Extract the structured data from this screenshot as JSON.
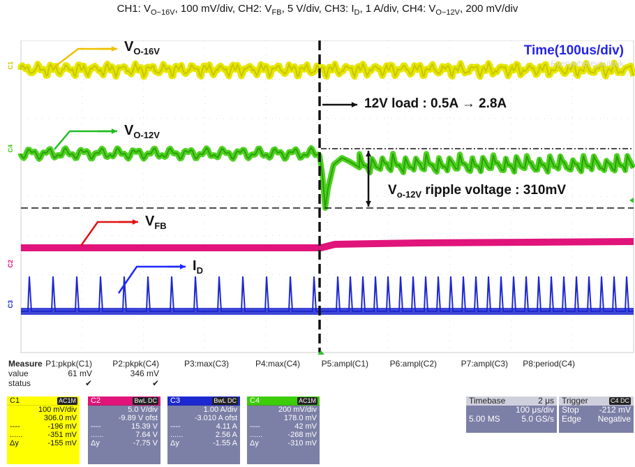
{
  "caption": {
    "ch1_label": "CH1: V",
    "ch1_sub": "O−16V",
    "ch1_scale": ", 100 mV/div, ",
    "ch2_label": "CH2: V",
    "ch2_sub": "FB",
    "ch2_scale": ", 5 V/div, ",
    "ch3_label": "CH3: I",
    "ch3_sub": "D",
    "ch3_scale": ", 1 A/div, ",
    "ch4_label": "CH4: V",
    "ch4_sub": "O−12V",
    "ch4_scale": ", 200 mV/div"
  },
  "annotations": {
    "vo16_main": "V",
    "vo16_sub": "O-16V",
    "vo12_main": "V",
    "vo12_sub": "O-12V",
    "vfb_main": "V",
    "vfb_sub": "FB",
    "id_main": "I",
    "id_sub": "D",
    "time_div": "Time(100us/div)",
    "load_step": "12V load : 0.5A → 2.8A",
    "ripple_main": "V",
    "ripple_sub": "o-12V",
    "ripple_text": " ripple voltage : 310mV",
    "watermark": "Everywhereyoulook"
  },
  "channel_markers": [
    "C1",
    "C4",
    "C2",
    "C3"
  ],
  "colors": {
    "ch1": "#e6e600",
    "ch2": "#e0147a",
    "ch3": "#1d28d0",
    "ch4": "#3ccc0a",
    "time_label": "#2424e6"
  },
  "measure": {
    "title": "Measure",
    "row_value": "value",
    "row_status": "status",
    "params": [
      {
        "label": "P1:pkpk(C1)",
        "value": "61 mV",
        "status": "✔"
      },
      {
        "label": "P2:pkpk(C4)",
        "value": "346 mV",
        "status": "✔"
      },
      {
        "label": "P3:max(C3)",
        "value": "",
        "status": ""
      },
      {
        "label": "P4:max(C4)",
        "value": "",
        "status": ""
      },
      {
        "label": "P5:ampl(C1)",
        "value": "",
        "status": ""
      },
      {
        "label": "P6:ampl(C2)",
        "value": "",
        "status": ""
      },
      {
        "label": "P7:ampl(C3)",
        "value": "",
        "status": ""
      },
      {
        "label": "P8:period(C4)",
        "value": "",
        "status": ""
      }
    ]
  },
  "channels": [
    {
      "name": "C1",
      "badge": "AC1M",
      "scale": "100 mV/div",
      "offset": "306.0 mV",
      "l1": "-196 mV",
      "l2": "-351 mV",
      "dy": "-155 mV"
    },
    {
      "name": "C2",
      "badge": "BwL DC",
      "scale": "5.0 V/div",
      "offset": "-9.89 V ofst",
      "l1": "15.39 V",
      "l2": "7.64 V",
      "dy": "-7.75 V"
    },
    {
      "name": "C3",
      "badge": "BwL DC",
      "scale": "1.00 A/div",
      "offset": "-3.010 A ofst",
      "l1": "4.11 A",
      "l2": "2.56 A",
      "dy": "-1.55 A"
    },
    {
      "name": "C4",
      "badge": "AC1M",
      "scale": "200 mV/div",
      "offset": "178.0 mV",
      "l1": "42 mV",
      "l2": "-268 mV",
      "dy": "-310 mV"
    }
  ],
  "cursor_labels": {
    "l1": "----",
    "l2": "......",
    "dy": "Δy"
  },
  "timebase": {
    "title": "Timebase",
    "offset": "2 μs",
    "per_div": "100 μs/div",
    "points": "5.00 MS",
    "rate": "5.0 GS/s"
  },
  "trigger": {
    "title": "Trigger",
    "badge": "C4 DC",
    "mode": "Stop",
    "level": "-212 mV",
    "type": "Edge",
    "slope": "Negative"
  }
}
